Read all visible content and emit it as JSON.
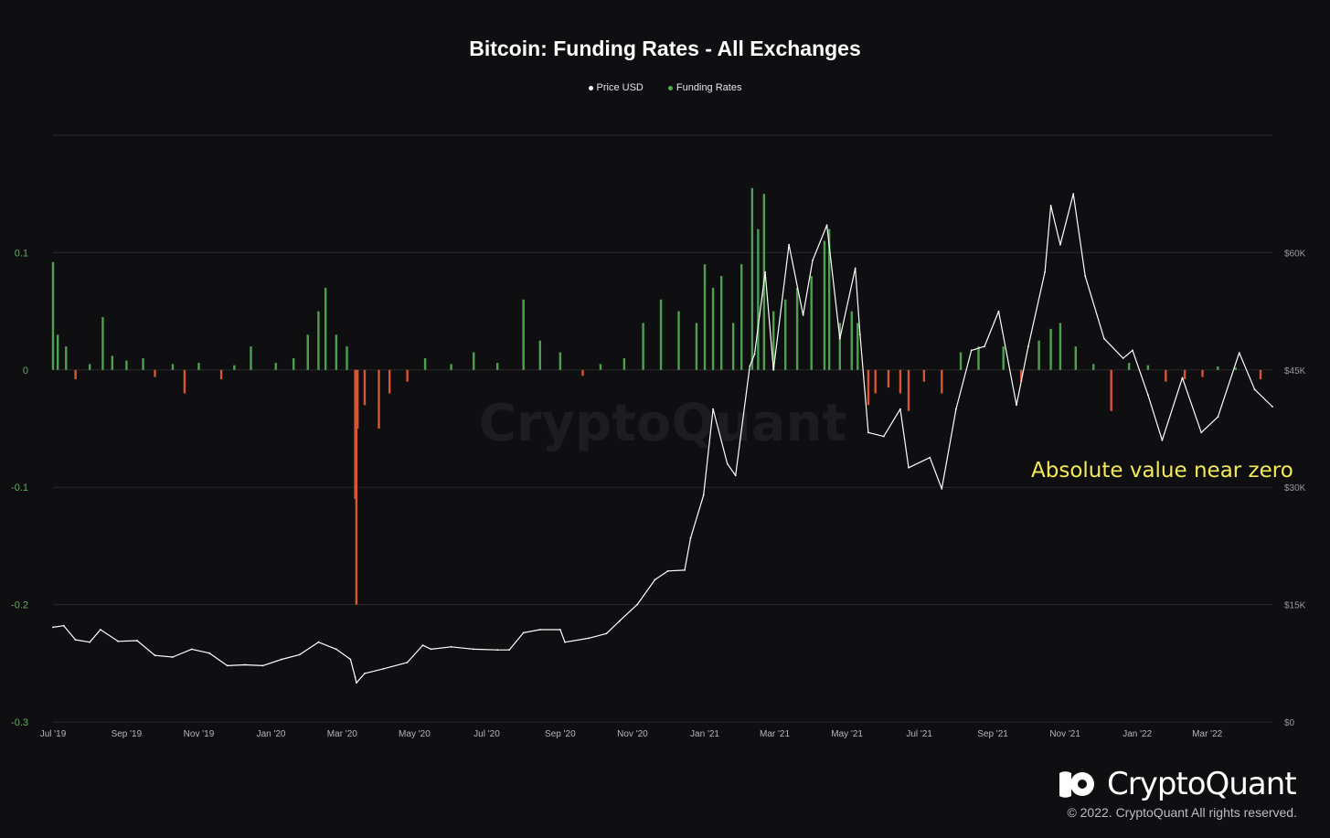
{
  "title": "Bitcoin: Funding Rates - All Exchanges",
  "legend": [
    {
      "label": "Price USD",
      "color": "#ffffff"
    },
    {
      "label": "Funding Rates",
      "color": "#4caf50"
    }
  ],
  "annotation": "Absolute value near zero",
  "watermark": "CryptoQuant",
  "brand": {
    "name": "CryptoQuant",
    "copyright": "© 2022. CryptoQuant All rights reserved."
  },
  "colors": {
    "background": "#0f0f11",
    "positive": "#4ea050",
    "negative": "#d65533",
    "price": "#ffffff",
    "grid": "#2a2a2e",
    "annotation": "#f3ea5a"
  },
  "chart_data": {
    "type": "bar",
    "x_tick_labels": [
      "Jul '19",
      "Sep '19",
      "Nov '19",
      "Jan '20",
      "Mar '20",
      "May '20",
      "Jul '20",
      "Sep '20",
      "Nov '20",
      "Jan '21",
      "Mar '21",
      "May '21",
      "Jul '21",
      "Sep '21",
      "Nov '21",
      "Jan '22",
      "Mar '22"
    ],
    "x_range": [
      "2019-07-01",
      "2022-04-25"
    ],
    "y_left": {
      "ticks": [
        0.1,
        0,
        -0.1,
        -0.2,
        -0.3
      ],
      "tick_labels": [
        "0.1",
        "0",
        "-0.1",
        "-0.2",
        "-0.3"
      ],
      "range": [
        -0.3,
        0.2
      ]
    },
    "y_right": {
      "ticks": [
        60000,
        45000,
        30000,
        15000,
        0
      ],
      "tick_labels": [
        "$60K",
        "$45K",
        "$30K",
        "$15K",
        "$0"
      ],
      "range": [
        0,
        75000
      ]
    },
    "grid": true,
    "legend_position": "top-center",
    "series": [
      {
        "name": "Funding Rates",
        "kind": "bar",
        "axis": "left",
        "points": [
          [
            "2019-07-01",
            0.092
          ],
          [
            "2019-07-05",
            0.03
          ],
          [
            "2019-07-12",
            0.02
          ],
          [
            "2019-07-20",
            -0.008
          ],
          [
            "2019-08-01",
            0.005
          ],
          [
            "2019-08-12",
            0.045
          ],
          [
            "2019-08-20",
            0.012
          ],
          [
            "2019-09-01",
            0.008
          ],
          [
            "2019-09-15",
            0.01
          ],
          [
            "2019-09-25",
            -0.006
          ],
          [
            "2019-10-10",
            0.005
          ],
          [
            "2019-10-20",
            -0.02
          ],
          [
            "2019-11-01",
            0.006
          ],
          [
            "2019-11-20",
            -0.008
          ],
          [
            "2019-12-01",
            0.004
          ],
          [
            "2019-12-15",
            0.02
          ],
          [
            "2020-01-05",
            0.006
          ],
          [
            "2020-01-20",
            0.01
          ],
          [
            "2020-02-01",
            0.03
          ],
          [
            "2020-02-10",
            0.05
          ],
          [
            "2020-02-16",
            0.07
          ],
          [
            "2020-02-25",
            0.03
          ],
          [
            "2020-03-05",
            0.02
          ],
          [
            "2020-03-12",
            -0.11
          ],
          [
            "2020-03-13",
            -0.2
          ],
          [
            "2020-03-14",
            -0.05
          ],
          [
            "2020-03-20",
            -0.03
          ],
          [
            "2020-04-01",
            -0.05
          ],
          [
            "2020-04-10",
            -0.02
          ],
          [
            "2020-04-25",
            -0.01
          ],
          [
            "2020-05-10",
            0.01
          ],
          [
            "2020-06-01",
            0.005
          ],
          [
            "2020-06-20",
            0.015
          ],
          [
            "2020-07-10",
            0.006
          ],
          [
            "2020-08-01",
            0.06
          ],
          [
            "2020-08-15",
            0.025
          ],
          [
            "2020-09-01",
            0.015
          ],
          [
            "2020-09-20",
            -0.005
          ],
          [
            "2020-10-05",
            0.005
          ],
          [
            "2020-10-25",
            0.01
          ],
          [
            "2020-11-10",
            0.04
          ],
          [
            "2020-11-25",
            0.06
          ],
          [
            "2020-12-10",
            0.05
          ],
          [
            "2020-12-25",
            0.04
          ],
          [
            "2021-01-01",
            0.09
          ],
          [
            "2021-01-08",
            0.07
          ],
          [
            "2021-01-15",
            0.08
          ],
          [
            "2021-01-25",
            0.04
          ],
          [
            "2021-02-01",
            0.09
          ],
          [
            "2021-02-10",
            0.155
          ],
          [
            "2021-02-15",
            0.12
          ],
          [
            "2021-02-20",
            0.15
          ],
          [
            "2021-02-28",
            0.05
          ],
          [
            "2021-03-10",
            0.06
          ],
          [
            "2021-03-20",
            0.07
          ],
          [
            "2021-04-01",
            0.08
          ],
          [
            "2021-04-12",
            0.11
          ],
          [
            "2021-04-16",
            0.12
          ],
          [
            "2021-04-25",
            0.04
          ],
          [
            "2021-05-05",
            0.05
          ],
          [
            "2021-05-10",
            0.04
          ],
          [
            "2021-05-19",
            -0.03
          ],
          [
            "2021-05-25",
            -0.02
          ],
          [
            "2021-06-05",
            -0.015
          ],
          [
            "2021-06-15",
            -0.02
          ],
          [
            "2021-06-22",
            -0.035
          ],
          [
            "2021-07-05",
            -0.01
          ],
          [
            "2021-07-20",
            -0.02
          ],
          [
            "2021-08-05",
            0.015
          ],
          [
            "2021-08-20",
            0.02
          ],
          [
            "2021-09-10",
            0.02
          ],
          [
            "2021-09-25",
            -0.01
          ],
          [
            "2021-10-10",
            0.025
          ],
          [
            "2021-10-20",
            0.035
          ],
          [
            "2021-10-28",
            0.04
          ],
          [
            "2021-11-10",
            0.02
          ],
          [
            "2021-11-25",
            0.005
          ],
          [
            "2021-12-10",
            -0.035
          ],
          [
            "2021-12-25",
            0.006
          ],
          [
            "2022-01-10",
            0.004
          ],
          [
            "2022-01-25",
            -0.01
          ],
          [
            "2022-02-10",
            -0.008
          ],
          [
            "2022-02-25",
            -0.006
          ],
          [
            "2022-03-10",
            0.003
          ],
          [
            "2022-03-25",
            0.002
          ],
          [
            "2022-04-15",
            -0.008
          ]
        ]
      },
      {
        "name": "Price USD",
        "kind": "line",
        "axis": "right",
        "points": [
          [
            "2019-07-01",
            12100
          ],
          [
            "2019-07-10",
            12300
          ],
          [
            "2019-07-20",
            10500
          ],
          [
            "2019-08-01",
            10200
          ],
          [
            "2019-08-10",
            11800
          ],
          [
            "2019-08-25",
            10300
          ],
          [
            "2019-09-10",
            10400
          ],
          [
            "2019-09-25",
            8500
          ],
          [
            "2019-10-10",
            8300
          ],
          [
            "2019-10-26",
            9300
          ],
          [
            "2019-11-10",
            8800
          ],
          [
            "2019-11-25",
            7200
          ],
          [
            "2019-12-10",
            7300
          ],
          [
            "2019-12-25",
            7200
          ],
          [
            "2020-01-10",
            8000
          ],
          [
            "2020-01-25",
            8600
          ],
          [
            "2020-02-10",
            10200
          ],
          [
            "2020-02-25",
            9300
          ],
          [
            "2020-03-08",
            8000
          ],
          [
            "2020-03-12",
            5700
          ],
          [
            "2020-03-13",
            5000
          ],
          [
            "2020-03-20",
            6200
          ],
          [
            "2020-04-05",
            6800
          ],
          [
            "2020-04-25",
            7600
          ],
          [
            "2020-05-08",
            9800
          ],
          [
            "2020-05-15",
            9300
          ],
          [
            "2020-06-01",
            9600
          ],
          [
            "2020-06-20",
            9300
          ],
          [
            "2020-07-10",
            9200
          ],
          [
            "2020-07-20",
            9200
          ],
          [
            "2020-08-01",
            11400
          ],
          [
            "2020-08-15",
            11800
          ],
          [
            "2020-09-01",
            11800
          ],
          [
            "2020-09-05",
            10200
          ],
          [
            "2020-09-25",
            10700
          ],
          [
            "2020-10-10",
            11300
          ],
          [
            "2020-10-21",
            12900
          ],
          [
            "2020-11-05",
            15000
          ],
          [
            "2020-11-20",
            18200
          ],
          [
            "2020-12-01",
            19300
          ],
          [
            "2020-12-15",
            19400
          ],
          [
            "2020-12-20",
            23500
          ],
          [
            "2020-12-31",
            29000
          ],
          [
            "2021-01-08",
            40000
          ],
          [
            "2021-01-20",
            33000
          ],
          [
            "2021-01-27",
            31500
          ],
          [
            "2021-02-08",
            45500
          ],
          [
            "2021-02-12",
            47000
          ],
          [
            "2021-02-21",
            57500
          ],
          [
            "2021-02-28",
            45000
          ],
          [
            "2021-03-13",
            61000
          ],
          [
            "2021-03-25",
            52000
          ],
          [
            "2021-04-02",
            59000
          ],
          [
            "2021-04-14",
            63500
          ],
          [
            "2021-04-25",
            49000
          ],
          [
            "2021-05-08",
            58000
          ],
          [
            "2021-05-12",
            49500
          ],
          [
            "2021-05-19",
            37000
          ],
          [
            "2021-06-01",
            36500
          ],
          [
            "2021-06-15",
            40000
          ],
          [
            "2021-06-22",
            32500
          ],
          [
            "2021-07-10",
            33800
          ],
          [
            "2021-07-20",
            29800
          ],
          [
            "2021-08-01",
            40000
          ],
          [
            "2021-08-14",
            47500
          ],
          [
            "2021-08-25",
            48000
          ],
          [
            "2021-09-06",
            52500
          ],
          [
            "2021-09-21",
            40500
          ],
          [
            "2021-10-01",
            48000
          ],
          [
            "2021-10-15",
            57500
          ],
          [
            "2021-10-20",
            66000
          ],
          [
            "2021-10-28",
            61000
          ],
          [
            "2021-11-08",
            67500
          ],
          [
            "2021-11-18",
            57000
          ],
          [
            "2021-12-04",
            49000
          ],
          [
            "2021-12-20",
            46500
          ],
          [
            "2021-12-28",
            47500
          ],
          [
            "2022-01-10",
            41800
          ],
          [
            "2022-01-22",
            36000
          ],
          [
            "2022-02-08",
            44000
          ],
          [
            "2022-02-24",
            37000
          ],
          [
            "2022-03-10",
            39000
          ],
          [
            "2022-03-28",
            47200
          ],
          [
            "2022-04-10",
            42500
          ],
          [
            "2022-04-25",
            40300
          ]
        ]
      }
    ]
  }
}
